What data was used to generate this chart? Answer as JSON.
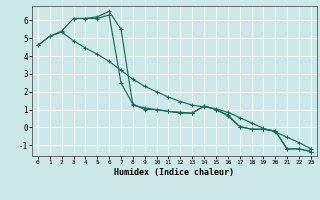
{
  "xlabel": "Humidex (Indice chaleur)",
  "bg_color": "#cce8e8",
  "grid_color": "#ffffff",
  "line_color": "#1a6b5a",
  "xlim": [
    -0.5,
    23.5
  ],
  "ylim": [
    -1.6,
    6.8
  ],
  "xticks": [
    0,
    1,
    2,
    3,
    4,
    5,
    6,
    7,
    8,
    9,
    10,
    11,
    12,
    13,
    14,
    15,
    16,
    17,
    18,
    19,
    20,
    21,
    22,
    23
  ],
  "yticks": [
    -1,
    0,
    1,
    2,
    3,
    4,
    5,
    6
  ],
  "line1_x": [
    0,
    1,
    2,
    3,
    4,
    5,
    6,
    7,
    8,
    9,
    10,
    11,
    12,
    13,
    14,
    15,
    16,
    17,
    18,
    19,
    20,
    21,
    22,
    23
  ],
  "line1_y": [
    4.6,
    5.1,
    5.4,
    6.1,
    6.1,
    6.1,
    6.3,
    2.5,
    1.3,
    1.0,
    1.0,
    0.9,
    0.8,
    0.8,
    1.2,
    1.0,
    0.7,
    0.05,
    -0.1,
    -0.1,
    -0.2,
    -1.2,
    -1.2,
    -1.35
  ],
  "line2_x": [
    0,
    1,
    2,
    3,
    4,
    5,
    6,
    7,
    8,
    9,
    10,
    11,
    12,
    13,
    14,
    15,
    16,
    17,
    18,
    19,
    20,
    21,
    22,
    23
  ],
  "line2_y": [
    4.6,
    5.1,
    5.35,
    4.85,
    4.45,
    4.1,
    3.7,
    3.2,
    2.7,
    2.3,
    2.0,
    1.7,
    1.45,
    1.25,
    1.15,
    1.05,
    0.85,
    0.55,
    0.25,
    -0.05,
    -0.25,
    -0.55,
    -0.85,
    -1.2
  ],
  "line3_x": [
    3,
    4,
    5,
    6,
    7,
    8,
    9,
    10,
    11,
    12,
    13,
    14,
    15,
    16,
    17,
    18,
    19,
    20,
    21,
    22,
    23
  ],
  "line3_y": [
    6.1,
    6.1,
    6.2,
    6.5,
    5.5,
    1.25,
    1.1,
    1.0,
    0.9,
    0.85,
    0.8,
    1.2,
    1.0,
    0.65,
    0.05,
    -0.1,
    -0.1,
    -0.2,
    -1.2,
    -1.2,
    -1.35
  ],
  "marker_size": 2.5,
  "lw": 0.85
}
